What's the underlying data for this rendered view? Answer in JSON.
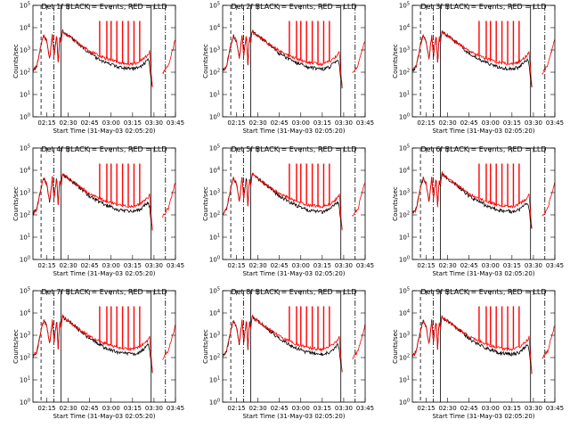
{
  "chart_data": {
    "type": "line",
    "grid": false,
    "y_scale": "log",
    "ylim": [
      1,
      100000
    ],
    "xlim": [
      "02:05:20",
      "03:45:00"
    ],
    "x_ticks": [
      "02:15",
      "02:30",
      "02:45",
      "03:00",
      "03:15",
      "03:30",
      "03:45"
    ],
    "y_ticks": [
      "10^0",
      "10^1",
      "10^2",
      "10^3",
      "10^4",
      "10^5"
    ],
    "ylabel": "Counts/sec",
    "xlabel": "Start Time (31-May-03 02:05:20)",
    "series_names": [
      "BLACK = Events",
      "RED = LLD"
    ],
    "colors": {
      "events": "#000000",
      "lld": "#ff0000"
    },
    "panels": [
      {
        "title": "Det 1f BLACK = Events, RED = LLD"
      },
      {
        "title": "Det 2f BLACK = Events, RED = LLD"
      },
      {
        "title": "Det 3f BLACK = Events, RED = LLD"
      },
      {
        "title": "Det 4f BLACK = Events, RED = LLD"
      },
      {
        "title": "Det 5f BLACK = Events, RED = LLD"
      },
      {
        "title": "Det 6f BLACK = Events, RED = LLD"
      },
      {
        "title": "Det 7f BLACK = Events, RED = LLD"
      },
      {
        "title": "Det 8f BLACK = Events, RED = LLD"
      },
      {
        "title": "Det 9f BLACK = Events, RED = LLD"
      }
    ],
    "markers": [
      {
        "time": "02:11:00",
        "style": "dashed"
      },
      {
        "time": "02:20:00",
        "style": "dash-dot"
      },
      {
        "time": "02:25:00",
        "style": "solid"
      },
      {
        "time": "03:28:00",
        "style": "solid"
      },
      {
        "time": "03:38:00",
        "style": "dash-dot"
      }
    ],
    "lld_counts": [
      [
        "02:05:20",
        120
      ],
      [
        "02:08",
        180
      ],
      [
        "02:10",
        800
      ],
      [
        "02:12",
        3000
      ],
      [
        "02:13",
        4500
      ],
      [
        "02:15",
        2500
      ],
      [
        "02:17",
        400
      ],
      [
        "02:18",
        1500
      ],
      [
        "02:19",
        5000
      ],
      [
        "02:20",
        500
      ],
      [
        "02:22",
        5000
      ],
      [
        "02:23",
        200
      ],
      [
        "02:24",
        4000
      ],
      [
        "02:25",
        2000
      ],
      [
        "02:26",
        8000
      ],
      [
        "02:27",
        6000
      ],
      [
        "02:35",
        2500
      ],
      [
        "02:45",
        900
      ],
      [
        "02:55",
        450
      ],
      [
        "03:05",
        280
      ],
      [
        "03:15",
        230
      ],
      [
        "03:20",
        300
      ],
      [
        "03:26",
        600
      ],
      [
        "03:27",
        900
      ],
      [
        "03:28",
        100
      ],
      [
        "03:29",
        20
      ],
      [
        "03:40",
        200
      ],
      [
        "03:45",
        3000
      ]
    ],
    "events_counts": [
      [
        "02:05:20",
        120
      ],
      [
        "02:08",
        180
      ],
      [
        "02:10",
        800
      ],
      [
        "02:12",
        3000
      ],
      [
        "02:13",
        4500
      ],
      [
        "02:15",
        2500
      ],
      [
        "02:17",
        400
      ],
      [
        "02:18",
        1500
      ],
      [
        "02:19",
        5000
      ],
      [
        "02:20",
        500
      ],
      [
        "02:22",
        5000
      ],
      [
        "02:23",
        200
      ],
      [
        "02:24",
        4000
      ],
      [
        "02:25",
        2000
      ],
      [
        "02:26",
        8000
      ],
      [
        "02:27",
        6000
      ],
      [
        "02:35",
        2500
      ],
      [
        "02:45",
        700
      ],
      [
        "02:55",
        300
      ],
      [
        "03:05",
        170
      ],
      [
        "03:15",
        140
      ],
      [
        "03:20",
        170
      ],
      [
        "03:26",
        380
      ],
      [
        "03:27",
        200
      ],
      [
        "03:28",
        50
      ],
      [
        "03:29",
        20
      ]
    ],
    "lld_spikes": [
      {
        "time": "02:52",
        "value": 20000
      },
      {
        "time": "02:57",
        "value": 20000
      },
      {
        "time": "03:00",
        "value": 20000
      },
      {
        "time": "03:04",
        "value": 20000
      },
      {
        "time": "03:08",
        "value": 20000
      },
      {
        "time": "03:12",
        "value": 20000
      },
      {
        "time": "03:16",
        "value": 20000
      },
      {
        "time": "03:20",
        "value": 20000
      }
    ]
  }
}
